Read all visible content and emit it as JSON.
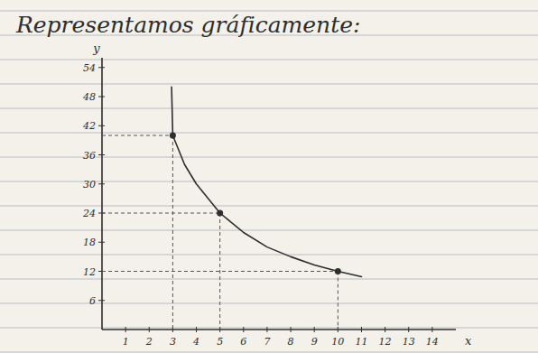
{
  "chart_data": {
    "type": "line",
    "title": "Representamos gráficamente:",
    "x_label": "x",
    "y_label": "y",
    "xlim": [
      0,
      15
    ],
    "ylim": [
      0,
      56
    ],
    "xticks": [
      1,
      2,
      3,
      4,
      5,
      6,
      7,
      8,
      9,
      10,
      11,
      12,
      13,
      14
    ],
    "yticks": [
      6,
      12,
      18,
      24,
      30,
      36,
      42,
      48,
      54
    ],
    "grid": false,
    "series": [
      {
        "type": "line",
        "color": "#2e2e2e",
        "line_style": "solid",
        "x": [
          2.95,
          3,
          3.5,
          4,
          5,
          6,
          7,
          8,
          9,
          10,
          11
        ],
        "values": [
          50,
          40,
          34,
          30,
          24,
          20,
          17,
          15,
          13.3,
          12,
          10.9
        ]
      },
      {
        "type": "scatter",
        "color": "#2e2e2e",
        "marker": "circle",
        "line_style": "dashed",
        "x": [
          3,
          5,
          10
        ],
        "values": [
          40,
          24,
          12
        ]
      }
    ]
  }
}
